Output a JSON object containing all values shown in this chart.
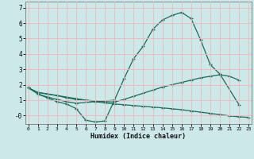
{
  "xlabel": "Humidex (Indice chaleur)",
  "bg_color": "#cce8e8",
  "grid_color": "#f2b8b8",
  "line_color": "#1a6b5a",
  "xlim": [
    -0.3,
    23.3
  ],
  "ylim": [
    -0.55,
    7.4
  ],
  "yticks": [
    0,
    1,
    2,
    3,
    4,
    5,
    6,
    7
  ],
  "ytick_labels": [
    "-0",
    "1",
    "2",
    "3",
    "4",
    "5",
    "6",
    "7"
  ],
  "xticks": [
    0,
    1,
    2,
    3,
    4,
    5,
    6,
    7,
    8,
    9,
    10,
    11,
    12,
    13,
    14,
    15,
    16,
    17,
    18,
    19,
    20,
    21,
    22,
    23
  ],
  "line1_x": [
    0,
    1,
    2,
    3,
    4,
    5,
    9,
    10,
    11,
    12,
    13,
    14,
    15,
    16,
    17,
    18,
    19,
    20,
    22
  ],
  "line1_y": [
    1.8,
    1.4,
    1.2,
    1.05,
    0.9,
    0.8,
    1.0,
    2.4,
    3.7,
    4.5,
    5.6,
    6.2,
    6.5,
    6.7,
    6.3,
    4.9,
    3.3,
    2.7,
    0.7
  ],
  "line2_x": [
    0,
    1,
    2,
    3,
    4,
    5,
    6,
    7,
    8,
    9,
    10,
    11,
    12,
    13,
    14,
    15,
    16,
    17,
    18,
    19,
    20,
    21,
    22
  ],
  "line2_y": [
    1.8,
    1.5,
    1.4,
    1.3,
    1.15,
    1.05,
    1.0,
    0.95,
    0.9,
    0.88,
    1.05,
    1.25,
    1.45,
    1.65,
    1.85,
    2.0,
    2.15,
    2.3,
    2.45,
    2.55,
    2.65,
    2.55,
    2.3
  ],
  "line3_x": [
    0,
    1,
    2,
    3,
    4,
    5,
    6,
    7,
    8,
    9,
    10,
    11,
    12,
    13,
    14,
    15,
    16,
    17,
    18,
    19,
    20,
    21,
    22,
    23
  ],
  "line3_y": [
    1.8,
    1.5,
    1.4,
    1.3,
    1.2,
    1.1,
    1.0,
    0.9,
    0.82,
    0.75,
    0.7,
    0.65,
    0.6,
    0.55,
    0.5,
    0.44,
    0.38,
    0.3,
    0.22,
    0.14,
    0.06,
    -0.02,
    -0.08,
    -0.12
  ],
  "line4_x": [
    1,
    2,
    3,
    4,
    5,
    6,
    7,
    8,
    9
  ],
  "line4_y": [
    1.4,
    1.15,
    0.9,
    0.75,
    0.45,
    -0.3,
    -0.42,
    -0.35,
    1.0
  ]
}
